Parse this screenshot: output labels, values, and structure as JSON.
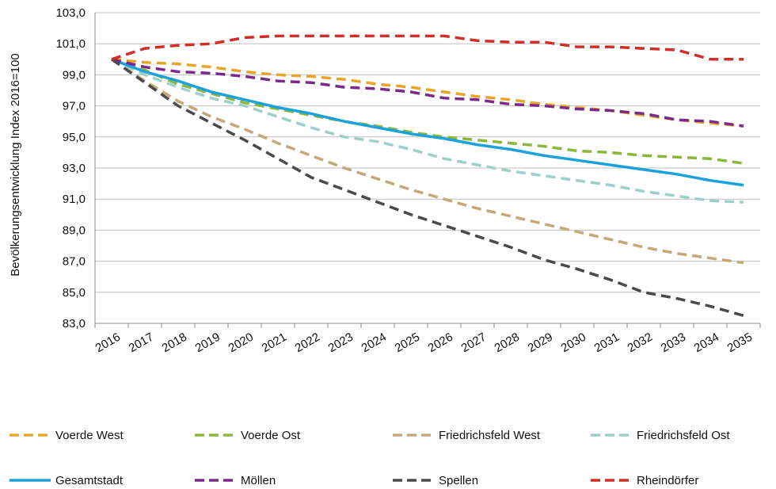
{
  "chart_data": {
    "type": "line",
    "title": "",
    "xlabel": "",
    "ylabel": "Bevölkerungsentwicklung  Index  2016=100",
    "ylim": [
      83,
      103
    ],
    "y_ticks": [
      "83,0",
      "85,0",
      "87,0",
      "89,0",
      "91,0",
      "93,0",
      "95,0",
      "97,0",
      "99,0",
      "101,0",
      "103,0"
    ],
    "grid": "horizontal",
    "legend_position": "bottom",
    "categories": [
      "2016",
      "2017",
      "2018",
      "2019",
      "2020",
      "2021",
      "2022",
      "2023",
      "2024",
      "2025",
      "2026",
      "2027",
      "2028",
      "2029",
      "2030",
      "2031",
      "2032",
      "2033",
      "2034",
      "2035"
    ],
    "series": [
      {
        "name": "Voerde West",
        "color": "#E8A52A",
        "dash": "dashed",
        "values": [
          100.0,
          99.8,
          99.7,
          99.5,
          99.2,
          99.0,
          98.9,
          98.7,
          98.4,
          98.2,
          97.9,
          97.6,
          97.4,
          97.1,
          96.9,
          96.7,
          96.4,
          96.1,
          95.9,
          95.7
        ]
      },
      {
        "name": "Voerde Ost",
        "color": "#8DB63C",
        "dash": "dashed",
        "values": [
          100.0,
          99.3,
          98.4,
          97.8,
          97.2,
          96.8,
          96.4,
          96.0,
          95.7,
          95.3,
          95.0,
          94.8,
          94.6,
          94.4,
          94.1,
          94.0,
          93.8,
          93.7,
          93.6,
          93.3
        ]
      },
      {
        "name": "Friedrichsfeld West",
        "color": "#C4A878",
        "dash": "dashed",
        "values": [
          100.0,
          98.6,
          97.3,
          96.3,
          95.5,
          94.6,
          93.8,
          93.0,
          92.3,
          91.6,
          91.0,
          90.4,
          89.9,
          89.4,
          88.9,
          88.4,
          87.9,
          87.5,
          87.2,
          86.9
        ]
      },
      {
        "name": "Friedrichsfeld Ost",
        "color": "#9DCFCB",
        "dash": "dashed",
        "values": [
          100.0,
          99.0,
          98.2,
          97.5,
          97.0,
          96.3,
          95.6,
          95.0,
          94.7,
          94.2,
          93.6,
          93.2,
          92.8,
          92.5,
          92.2,
          91.9,
          91.5,
          91.2,
          90.9,
          90.8
        ]
      },
      {
        "name": "Gesamtstadt",
        "color": "#1BA1DC",
        "dash": "solid",
        "values": [
          100.0,
          99.2,
          98.6,
          97.9,
          97.4,
          96.9,
          96.5,
          96.0,
          95.6,
          95.2,
          94.9,
          94.5,
          94.2,
          93.8,
          93.5,
          93.2,
          92.9,
          92.6,
          92.2,
          91.9
        ]
      },
      {
        "name": "Möllen",
        "color": "#7B2A8C",
        "dash": "dashed",
        "values": [
          100.0,
          99.5,
          99.2,
          99.1,
          98.9,
          98.6,
          98.5,
          98.2,
          98.1,
          97.9,
          97.5,
          97.4,
          97.1,
          97.0,
          96.8,
          96.7,
          96.5,
          96.1,
          96.0,
          95.7
        ]
      },
      {
        "name": "Spellen",
        "color": "#4A4A4A",
        "dash": "dashed",
        "values": [
          100.0,
          98.5,
          97.0,
          95.9,
          94.8,
          93.6,
          92.4,
          91.6,
          90.8,
          90.0,
          89.3,
          88.6,
          87.9,
          87.1,
          86.5,
          85.8,
          85.0,
          84.6,
          84.1,
          83.5
        ]
      },
      {
        "name": "Rheindörfer",
        "color": "#D12E2A",
        "dash": "dashed",
        "values": [
          100.0,
          100.7,
          100.9,
          101.0,
          101.4,
          101.5,
          101.5,
          101.5,
          101.5,
          101.5,
          101.5,
          101.2,
          101.1,
          101.1,
          100.8,
          100.8,
          100.7,
          100.6,
          100.0,
          100.0
        ]
      }
    ]
  }
}
